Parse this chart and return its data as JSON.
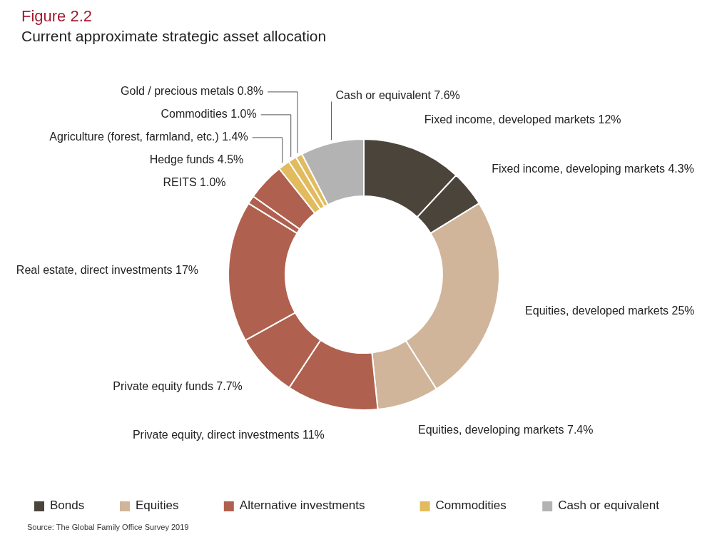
{
  "chart_data": {
    "type": "donut",
    "title": "Figure 2.2",
    "subtitle": "Current approximate strategic asset allocation",
    "categories": [
      "Fixed income, developed markets",
      "Fixed income, developing markets",
      "Equities, developed markets",
      "Equities, developing markets",
      "Private equity, direct investments",
      "Private equity funds",
      "Real estate, direct investments",
      "REITS",
      "Hedge funds",
      "Agriculture (forest, farmland, etc.)",
      "Commodities",
      "Gold / precious metals",
      "Cash or equivalent"
    ],
    "values": [
      12,
      4.3,
      25,
      7.4,
      11,
      7.7,
      17,
      1.0,
      4.5,
      1.4,
      1.0,
      0.8,
      7.6
    ],
    "colors": [
      "#4a443b",
      "#4a443b",
      "#d0b59a",
      "#d0b59a",
      "#b0604e",
      "#b0604e",
      "#b0604e",
      "#b0604e",
      "#b0604e",
      "#e2bb5e",
      "#e2bb5e",
      "#e2bb5e",
      "#b3b3b3"
    ],
    "value_labels": [
      "12%",
      "4.3%",
      "25%",
      "7.4%",
      "11%",
      "7.7%",
      "17%",
      "1.0%",
      "4.5%",
      "1.4%",
      "1.0%",
      "0.8%",
      "7.6%"
    ],
    "legend": "bottom",
    "annotations": [
      "Bonds",
      "Equities",
      "Alternative investments",
      "Commodities",
      "Cash or equivalent",
      "Source: The Global Family Office Survey 2019"
    ]
  }
}
